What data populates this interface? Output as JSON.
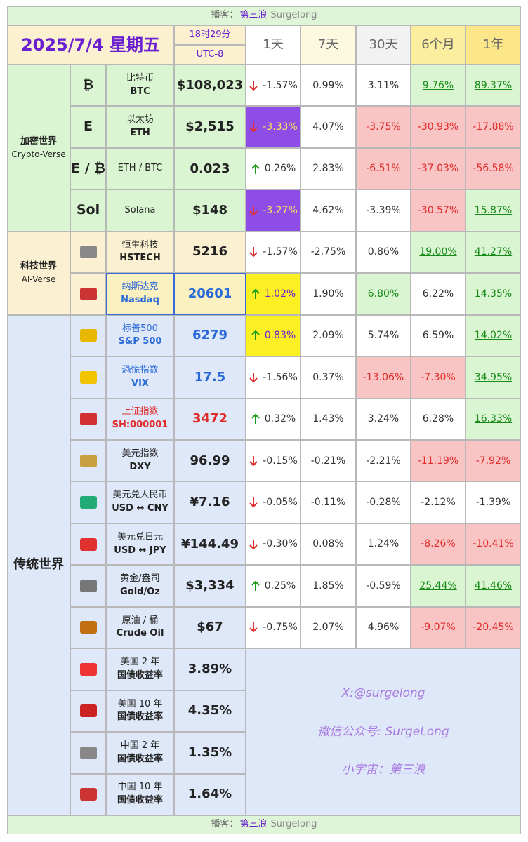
{
  "podcast": {
    "label": "播客：",
    "name": "第三浪",
    "brand": "Surgelong"
  },
  "header": {
    "date": "2025/7/4 星期五",
    "time": "18时29分",
    "zone": "UTC-8",
    "periods": [
      "1天",
      "7天",
      "30天",
      "6个月",
      "1年"
    ]
  },
  "groups": [
    {
      "name": "加密世界",
      "sub": "Crypto-Verse",
      "theme": "crypto",
      "items": [
        {
          "symbol": "₿",
          "name": "比特币",
          "code": "BTC",
          "price": "$108,023",
          "changes": [
            "-1.57%",
            "0.99%",
            "3.11%",
            "9.76%",
            "89.37%"
          ],
          "styles": [
            "plain",
            "plain",
            "plain",
            "green",
            "green"
          ]
        },
        {
          "symbol": "E",
          "name": "以太坊",
          "code": "ETH",
          "price": "$2,515",
          "changes": [
            "-3.33%",
            "4.07%",
            "-3.75%",
            "-30.93%",
            "-17.88%"
          ],
          "styles": [
            "purple",
            "plain",
            "red",
            "red",
            "red"
          ]
        },
        {
          "symbol": "E / ₿",
          "name": "ETH / BTC",
          "price": "0.023",
          "changes": [
            "0.26%",
            "2.83%",
            "-6.51%",
            "-37.03%",
            "-56.58%"
          ],
          "styles": [
            "plain",
            "plain",
            "red",
            "red",
            "red"
          ]
        },
        {
          "symbol": "Sol",
          "name": "Solana",
          "price": "$148",
          "changes": [
            "-3.27%",
            "4.62%",
            "-3.39%",
            "-30.57%",
            "15.87%"
          ],
          "styles": [
            "purple",
            "plain",
            "plain",
            "red",
            "green"
          ]
        }
      ]
    },
    {
      "name": "科技世界",
      "sub": "AI-Verse",
      "theme": "ai",
      "items": [
        {
          "name": "恒生科技",
          "code": "HSTECH",
          "price": "5216",
          "changes": [
            "-1.57%",
            "-2.75%",
            "0.86%",
            "19.00%",
            "41.27%"
          ],
          "styles": [
            "plain",
            "plain",
            "plain",
            "green",
            "green"
          ]
        },
        {
          "name": "纳斯达克",
          "code": "Nasdaq",
          "price": "20601",
          "tone": "blue",
          "highlight": true,
          "changes": [
            "1.02%",
            "1.90%",
            "6.80%",
            "6.22%",
            "14.35%"
          ],
          "styles": [
            "yellow",
            "plain",
            "green",
            "plain",
            "green"
          ]
        }
      ]
    },
    {
      "name": "传统世界",
      "theme": "trad",
      "items": [
        {
          "name": "标普500",
          "code": "S&P 500",
          "price": "6279",
          "tone": "blue",
          "changes": [
            "0.83%",
            "2.09%",
            "5.74%",
            "6.59%",
            "14.02%"
          ],
          "styles": [
            "yellow",
            "plain",
            "plain",
            "plain",
            "green"
          ]
        },
        {
          "name": "恐慌指数",
          "code": "VIX",
          "price": "17.5",
          "tone": "blue",
          "changes": [
            "-1.56%",
            "0.37%",
            "-13.06%",
            "-7.30%",
            "34.95%"
          ],
          "styles": [
            "plain",
            "plain",
            "red",
            "red",
            "green"
          ]
        },
        {
          "name": "上证指数",
          "code": "SH:000001",
          "price": "3472",
          "tone": "red",
          "changes": [
            "0.32%",
            "1.43%",
            "3.24%",
            "6.28%",
            "16.33%"
          ],
          "styles": [
            "plain",
            "plain",
            "plain",
            "plain",
            "green"
          ]
        },
        {
          "name": "美元指数",
          "code": "DXY",
          "price": "96.99",
          "changes": [
            "-0.15%",
            "-0.21%",
            "-2.21%",
            "-11.19%",
            "-7.92%"
          ],
          "styles": [
            "plain",
            "plain",
            "plain",
            "red",
            "red"
          ]
        },
        {
          "name": "美元兑人民币",
          "code": "USD ↔ CNY",
          "price": "¥7.16",
          "changes": [
            "-0.05%",
            "-0.11%",
            "-0.28%",
            "-2.12%",
            "-1.39%"
          ],
          "styles": [
            "plain",
            "plain",
            "plain",
            "plain",
            "plain"
          ]
        },
        {
          "name": "美元兑日元",
          "code": "USD ↔ JPY",
          "price": "¥144.49",
          "changes": [
            "-0.30%",
            "0.08%",
            "1.24%",
            "-8.26%",
            "-10.41%"
          ],
          "styles": [
            "plain",
            "plain",
            "plain",
            "red",
            "red"
          ]
        },
        {
          "name": "黄金/盎司",
          "code": "Gold/Oz",
          "price": "$3,334",
          "changes": [
            "0.25%",
            "1.85%",
            "-0.59%",
            "25.44%",
            "41.46%"
          ],
          "styles": [
            "plain",
            "plain",
            "plain",
            "green",
            "green"
          ]
        },
        {
          "name": "原油 / 桶",
          "code": "Crude Oil",
          "price": "$67",
          "changes": [
            "-0.75%",
            "2.07%",
            "4.96%",
            "-9.07%",
            "-20.45%"
          ],
          "styles": [
            "plain",
            "plain",
            "plain",
            "red",
            "red"
          ]
        },
        {
          "name": "美国 2 年",
          "code": "国债收益率",
          "price": "3.89%"
        },
        {
          "name": "美国 10 年",
          "code": "国债收益率",
          "price": "4.35%"
        },
        {
          "name": "中国 2 年",
          "code": "国债收益率",
          "price": "1.35%"
        },
        {
          "name": "中国 10 年",
          "code": "国债收益率",
          "price": "1.64%"
        }
      ]
    }
  ],
  "watermark": [
    "X:@surgelong",
    "微信公众号: SurgeLong",
    "小宇宙：第三浪"
  ]
}
